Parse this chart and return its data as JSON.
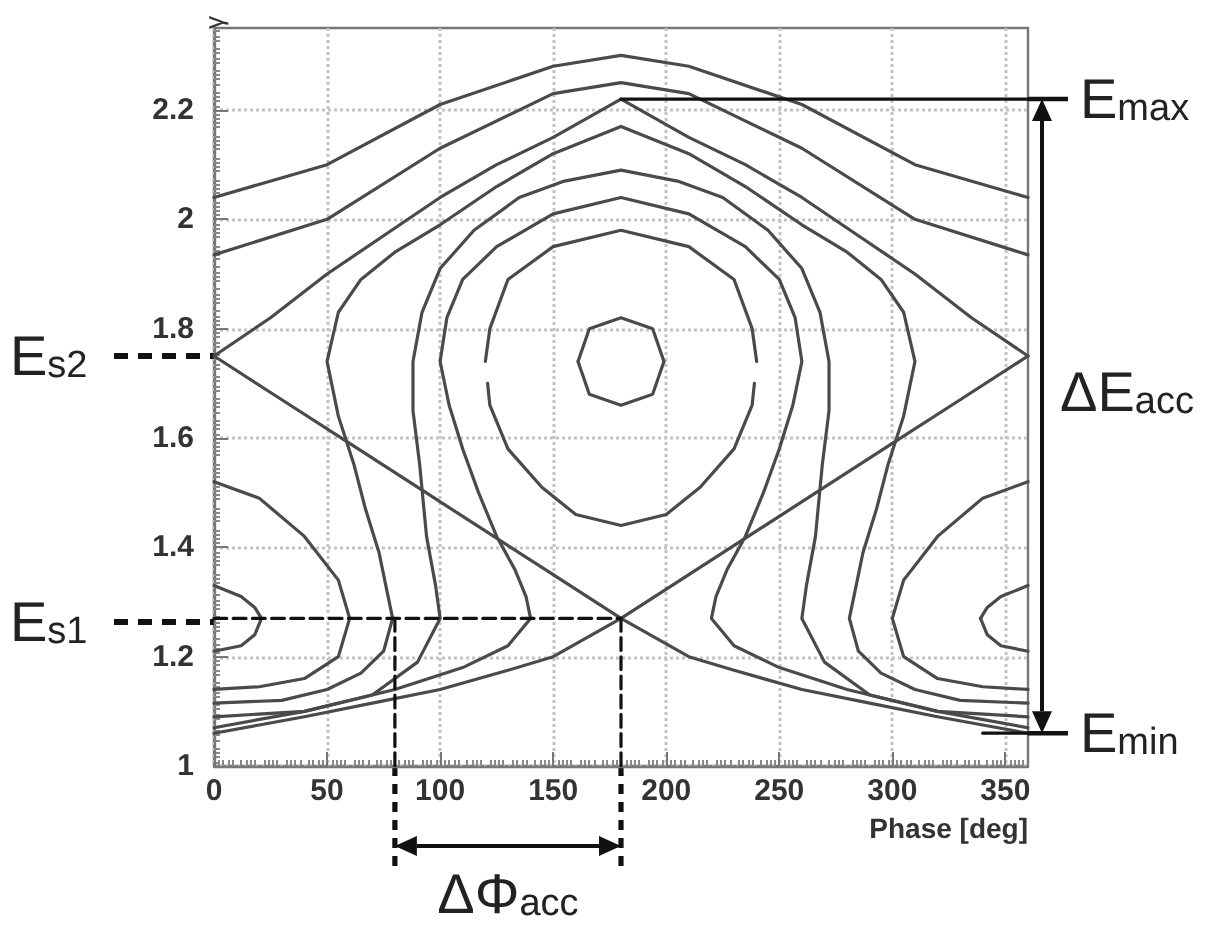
{
  "chart_data": {
    "type": "line",
    "xlabel": "Phase [deg]",
    "ylabel": "γ",
    "xlim": [
      0,
      360
    ],
    "xticks": [
      0,
      50,
      100,
      150,
      200,
      250,
      300,
      350
    ],
    "ylim": [
      1,
      2.35
    ],
    "yticks": [
      1,
      1.2,
      1.4,
      1.6,
      1.8,
      2,
      2.2
    ],
    "grid": true,
    "series": [
      {
        "color": "#4a4a4a",
        "x": [
          0,
          30,
          60,
          90,
          120,
          150,
          180,
          210,
          230,
          260,
          290,
          320,
          340,
          360
        ],
        "values": [
          1.75,
          1.67,
          1.59,
          1.51,
          1.43,
          1.35,
          1.27,
          1.2,
          1.175,
          1.14,
          1.115,
          1.09,
          1.075,
          1.06
        ]
      },
      {
        "color": "#4a4a4a",
        "x": [
          0,
          20,
          40,
          70,
          100,
          130,
          150,
          180,
          210,
          240,
          270,
          300,
          330,
          360
        ],
        "values": [
          1.06,
          1.075,
          1.09,
          1.115,
          1.14,
          1.175,
          1.2,
          1.27,
          1.35,
          1.43,
          1.51,
          1.59,
          1.67,
          1.75
        ]
      },
      {
        "color": "#4a4a4a",
        "x": [
          0,
          25,
          50,
          75,
          100,
          125,
          150,
          180,
          210,
          235,
          260,
          285,
          310,
          335,
          360
        ],
        "values": [
          1.75,
          1.82,
          1.9,
          1.97,
          2.04,
          2.1,
          2.15,
          2.22,
          2.15,
          2.1,
          2.04,
          1.97,
          1.9,
          1.82,
          1.75
        ]
      },
      {
        "color": "#4a4a4a",
        "x": [
          0,
          50,
          100,
          150,
          180,
          210,
          260,
          310,
          360
        ],
        "values": [
          2.04,
          2.1,
          2.21,
          2.28,
          2.3,
          2.28,
          2.21,
          2.1,
          2.04
        ]
      },
      {
        "color": "#4a4a4a",
        "x": [
          0,
          50,
          100,
          150,
          180,
          210,
          260,
          310,
          360
        ],
        "values": [
          1.935,
          2.0,
          2.13,
          2.23,
          2.25,
          2.23,
          2.13,
          2.0,
          1.935
        ]
      },
      {
        "color": "#4a4a4a",
        "x": [
          0,
          30,
          50,
          65,
          75,
          79,
          76,
          73,
          67,
          62,
          55,
          50,
          55,
          65,
          80,
          100,
          125,
          150,
          180,
          210,
          235,
          260,
          280,
          295,
          305,
          310,
          305,
          298,
          293,
          287,
          284,
          281,
          285,
          295,
          310,
          330,
          360
        ],
        "values": [
          1.115,
          1.12,
          1.14,
          1.17,
          1.21,
          1.27,
          1.33,
          1.39,
          1.47,
          1.55,
          1.64,
          1.74,
          1.83,
          1.89,
          1.94,
          1.99,
          2.06,
          2.12,
          2.17,
          2.12,
          2.06,
          1.99,
          1.94,
          1.89,
          1.83,
          1.74,
          1.64,
          1.55,
          1.47,
          1.39,
          1.33,
          1.27,
          1.21,
          1.17,
          1.14,
          1.12,
          1.115
        ]
      },
      {
        "color": "#4a4a4a",
        "x": [
          0,
          40,
          70,
          90,
          100,
          98,
          94,
          91,
          88,
          88,
          92,
          100,
          115,
          135,
          155,
          180,
          205,
          225,
          245,
          260,
          268,
          272,
          272,
          269,
          266,
          262,
          260,
          270,
          290,
          320,
          360
        ],
        "values": [
          1.09,
          1.1,
          1.13,
          1.19,
          1.27,
          1.33,
          1.42,
          1.55,
          1.65,
          1.74,
          1.83,
          1.91,
          1.98,
          2.04,
          2.07,
          2.09,
          2.07,
          2.04,
          1.98,
          1.91,
          1.83,
          1.74,
          1.65,
          1.55,
          1.42,
          1.33,
          1.27,
          1.19,
          1.13,
          1.1,
          1.09
        ]
      },
      {
        "color": "#4a4a4a",
        "x": [
          0,
          40,
          80,
          110,
          130,
          140,
          138,
          133,
          125,
          117,
          110,
          104,
          100,
          103,
          110,
          125,
          150,
          180,
          210,
          235,
          250,
          257,
          260,
          256,
          250,
          243,
          235,
          227,
          222,
          220,
          230,
          250,
          280,
          320,
          360
        ],
        "values": [
          1.07,
          1.1,
          1.14,
          1.18,
          1.22,
          1.27,
          1.31,
          1.36,
          1.42,
          1.5,
          1.58,
          1.66,
          1.74,
          1.82,
          1.89,
          1.95,
          2.01,
          2.04,
          2.01,
          1.95,
          1.89,
          1.82,
          1.74,
          1.66,
          1.58,
          1.5,
          1.42,
          1.36,
          1.31,
          1.27,
          1.22,
          1.18,
          1.14,
          1.1,
          1.07
        ]
      },
      {
        "color": "#4a4a4a",
        "x": [
          120,
          122,
          130,
          150,
          180,
          210,
          230,
          238,
          240
        ],
        "values": [
          1.74,
          1.8,
          1.89,
          1.95,
          1.98,
          1.95,
          1.89,
          1.8,
          1.74
        ]
      },
      {
        "color": "#4a4a4a",
        "x": [
          121,
          122,
          130,
          145,
          160,
          180,
          200,
          215,
          230,
          238,
          239
        ],
        "values": [
          1.7,
          1.66,
          1.58,
          1.51,
          1.46,
          1.44,
          1.46,
          1.51,
          1.58,
          1.66,
          1.7
        ]
      },
      {
        "color": "#4a4a4a",
        "x": [
          161,
          166,
          180,
          194,
          199
        ],
        "values": [
          1.74,
          1.8,
          1.82,
          1.8,
          1.74
        ]
      },
      {
        "color": "#4a4a4a",
        "x": [
          161,
          166,
          180,
          194,
          199
        ],
        "values": [
          1.74,
          1.68,
          1.66,
          1.68,
          1.74
        ]
      },
      {
        "color": "#4a4a4a",
        "x": [
          0,
          20,
          40,
          55,
          60
        ],
        "values": [
          1.52,
          1.49,
          1.42,
          1.34,
          1.27
        ]
      },
      {
        "color": "#4a4a4a",
        "x": [
          0,
          20,
          40,
          55,
          60
        ],
        "values": [
          1.14,
          1.145,
          1.16,
          1.2,
          1.27
        ]
      },
      {
        "color": "#4a4a4a",
        "x": [
          300,
          305,
          320,
          340,
          360
        ],
        "values": [
          1.27,
          1.34,
          1.42,
          1.49,
          1.52
        ]
      },
      {
        "color": "#4a4a4a",
        "x": [
          300,
          305,
          320,
          340,
          360
        ],
        "values": [
          1.27,
          1.2,
          1.16,
          1.145,
          1.14
        ]
      },
      {
        "color": "#4a4a4a",
        "x": [
          0,
          12,
          18,
          21
        ],
        "values": [
          1.33,
          1.31,
          1.29,
          1.27
        ]
      },
      {
        "color": "#4a4a4a",
        "x": [
          0,
          12,
          18,
          21
        ],
        "values": [
          1.21,
          1.22,
          1.24,
          1.27
        ]
      },
      {
        "color": "#4a4a4a",
        "x": [
          339,
          342,
          348,
          360
        ],
        "values": [
          1.27,
          1.29,
          1.31,
          1.33
        ]
      },
      {
        "color": "#4a4a4a",
        "x": [
          339,
          342,
          348,
          360
        ],
        "values": [
          1.27,
          1.24,
          1.22,
          1.21
        ]
      },
      {
        "color": "#111111",
        "line_style": "dashed",
        "x": [
          0,
          180
        ],
        "values": [
          1.27,
          1.27
        ]
      },
      {
        "color": "#111111",
        "line_style": "dashed",
        "x": [
          80,
          80
        ],
        "values": [
          1.27,
          1
        ]
      },
      {
        "color": "#111111",
        "line_style": "dashed",
        "x": [
          180,
          180
        ],
        "values": [
          1.27,
          1
        ]
      },
      {
        "color": "#111111",
        "x": [
          180,
          360
        ],
        "values": [
          2.22,
          2.22
        ]
      },
      {
        "color": "#111111",
        "x": [
          340,
          360
        ],
        "values": [
          1.06,
          1.06
        ]
      }
    ],
    "annotations": [
      "E$_{max}$",
      "E$_{min}$",
      "E$_{s2}$",
      "E$_{s1}$",
      "ΔE$_{acc}$",
      "ΔΦ$_{acc}$"
    ]
  }
}
